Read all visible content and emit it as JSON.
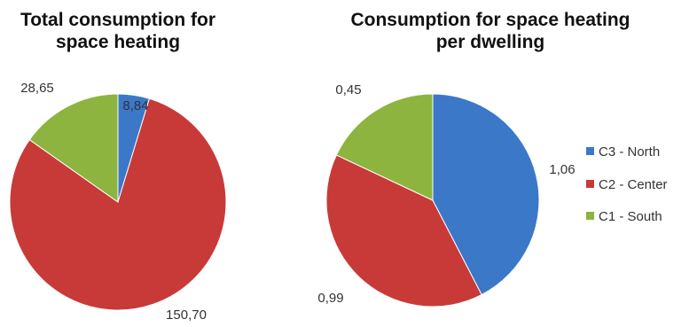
{
  "chart_data": [
    {
      "type": "pie",
      "title_lines": [
        "Total consumption for",
        "space heating"
      ],
      "categories": [
        "C3 - North",
        "C2 - Center",
        "C1 - South"
      ],
      "values": [
        8.84,
        150.7,
        28.65
      ],
      "value_labels": [
        "8,84",
        "150,70",
        "28,65"
      ]
    },
    {
      "type": "pie",
      "title_lines": [
        "Consumption for space heating",
        "per dwelling"
      ],
      "categories": [
        "C3 - North",
        "C2 - Center",
        "C1 - South"
      ],
      "values": [
        1.06,
        0.99,
        0.45
      ],
      "value_labels": [
        "1,06",
        "0,99",
        "0,45"
      ]
    }
  ],
  "legend": {
    "position": "right",
    "items": [
      {
        "label": "C3 - North",
        "color": "#3C78C8"
      },
      {
        "label": "C2 - Center",
        "color": "#C83A38"
      },
      {
        "label": "C1 - South",
        "color": "#8DB43E"
      }
    ]
  }
}
